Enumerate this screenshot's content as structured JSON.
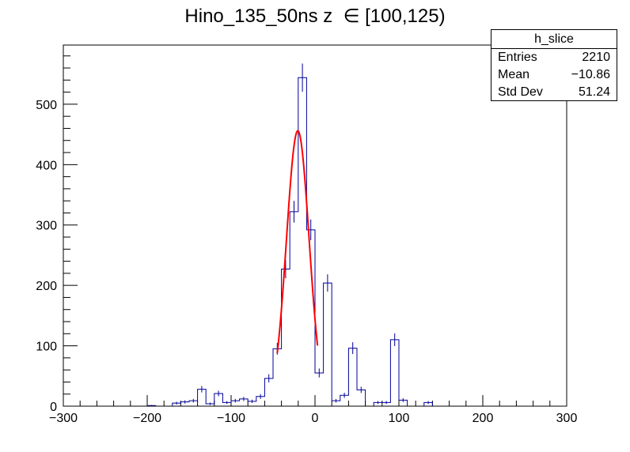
{
  "title": "Hino_135_50ns z  ∈ [100,125)",
  "stats_box": {
    "name": "h_slice",
    "rows": [
      {
        "label": "Entries",
        "value": "2210"
      },
      {
        "label": "Mean",
        "value": "−10.86"
      },
      {
        "label": "Std Dev",
        "value": "51.24"
      }
    ]
  },
  "colors": {
    "histogram": "#000099",
    "fit": "#ff0000",
    "axes": "#000000"
  },
  "chart_data": {
    "type": "histogram",
    "title": "Hino_135_50ns z  ∈ [100,125)",
    "xlabel": "",
    "ylabel": "",
    "xlim": [
      -300,
      300
    ],
    "ylim": [
      0,
      598
    ],
    "x_ticks": [
      -300,
      -200,
      -100,
      0,
      100,
      200,
      300
    ],
    "y_ticks": [
      0,
      100,
      200,
      300,
      400,
      500
    ],
    "bin_edges_start": -300,
    "bin_width": 10,
    "counts": [
      0,
      0,
      0,
      0,
      0,
      0,
      0,
      0,
      0,
      0,
      1,
      0,
      0,
      5,
      7,
      9,
      28,
      4,
      21,
      6,
      9,
      12,
      8,
      16,
      46,
      95,
      227,
      322,
      544,
      292,
      55,
      204,
      9,
      18,
      96,
      27,
      0,
      6,
      6,
      110,
      10,
      0,
      0,
      6,
      0,
      0,
      0,
      0,
      0,
      0,
      0,
      0,
      0,
      0,
      0,
      0,
      0,
      0,
      0,
      0
    ],
    "fit": {
      "function": "gaus",
      "constant": 456,
      "mean": -20.5,
      "sigma": 13.5,
      "range": [
        -45,
        3
      ]
    }
  }
}
